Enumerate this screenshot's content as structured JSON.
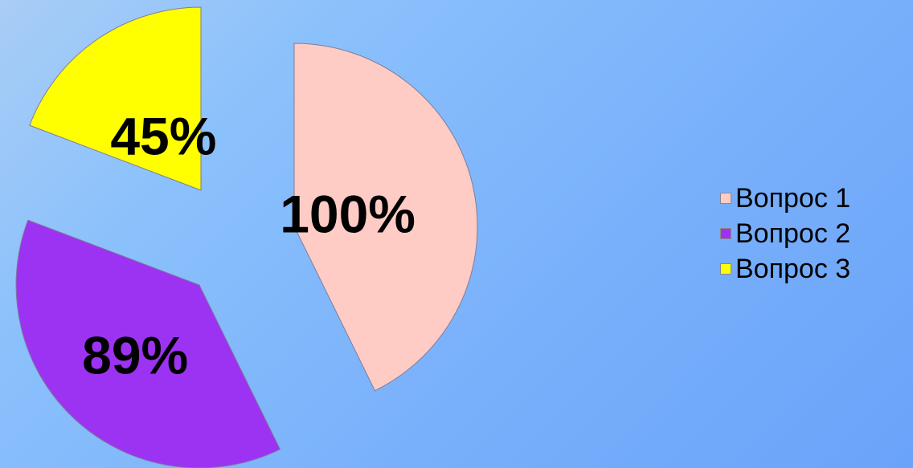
{
  "chart_data": {
    "type": "pie",
    "categories": [
      "Вопрос 1",
      "Вопрос 2",
      "Вопрос 3"
    ],
    "values": [
      100,
      89,
      45
    ],
    "data_labels": [
      "100%",
      "89%",
      "45%"
    ],
    "colors": [
      "#ffcbc5",
      "#9d33f2",
      "#ffff00"
    ],
    "exploded": true,
    "legend_position": "right"
  }
}
